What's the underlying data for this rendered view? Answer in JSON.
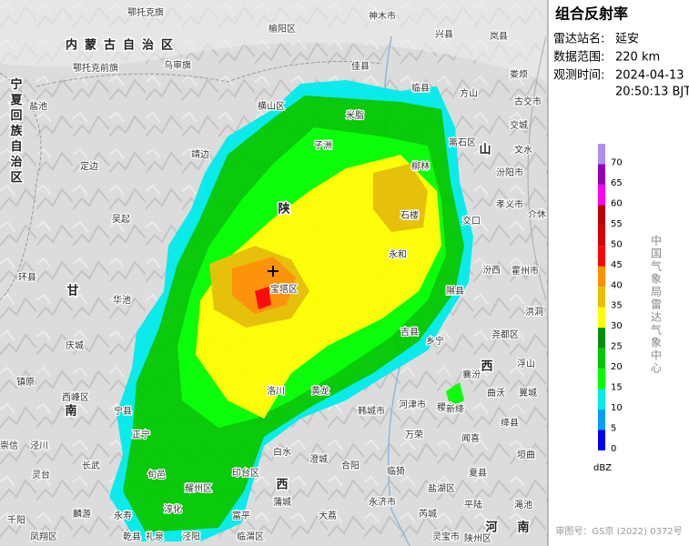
{
  "panel": {
    "title": "组合反射率",
    "fields": [
      {
        "label": "雷达站名:",
        "value": "延安"
      },
      {
        "label": "数据范围:",
        "value": "220 km"
      },
      {
        "label": "观测时间:",
        "value": "2024-04-13",
        "value2": "20:50:13 BJT"
      }
    ],
    "credit": "中国气象局雷达气象中心",
    "approval": "审图号：GS京 (2022) 0372号"
  },
  "legend": {
    "unit": "dBZ",
    "levels": [
      70,
      65,
      60,
      55,
      50,
      45,
      40,
      35,
      30,
      25,
      20,
      15,
      10,
      5,
      0
    ],
    "colors": [
      "#ad90f0",
      "#9600b4",
      "#ff00f0",
      "#c00000",
      "#d60000",
      "#ff0000",
      "#ff9000",
      "#e7c000",
      "#ffff00",
      "#009000",
      "#00c800",
      "#01ff00",
      "#00ecec",
      "#01a0f6",
      "#0000f6"
    ]
  },
  "map": {
    "regions": [
      "内蒙古自治区",
      "宁夏回族自治区",
      "陕",
      "山",
      "甘",
      "西",
      "南",
      "西",
      "河",
      "南"
    ],
    "places": [
      "鄂托克旗",
      "神木市",
      "兴县",
      "岚县",
      "榆阳区",
      "鄂托克前旗",
      "乌审旗",
      "佳县",
      "临县",
      "方山",
      "娄烦",
      "古交市",
      "盐池",
      "横山区",
      "米脂",
      "交城",
      "离石区",
      "文水",
      "靖边",
      "子洲",
      "定边",
      "柳林",
      "汾阳市",
      "孝义市",
      "吴起",
      "石楼",
      "交口",
      "介休",
      "环县",
      "华池",
      "宝塔区",
      "汾西",
      "霍州市",
      "隰县",
      "洪洞",
      "庆城",
      "永和",
      "吉县",
      "乡宁",
      "尧都区",
      "襄汾",
      "浮山",
      "镇原",
      "西峰区",
      "宁县",
      "黄龙",
      "洛川",
      "韩城市",
      "河津市",
      "稷山",
      "新绛",
      "曲沃",
      "翼城",
      "绛县",
      "崇信",
      "泾川",
      "正宁",
      "万荣",
      "闻喜",
      "白水",
      "澄城",
      "合阳",
      "垣曲",
      "灵台",
      "长武",
      "旬邑",
      "印台区",
      "临猗",
      "夏县",
      "淳化",
      "耀州区",
      "蒲城",
      "永济市",
      "盐湖区",
      "平陆",
      "渑池",
      "千阳",
      "麟游",
      "永寿",
      "富平",
      "大荔",
      "芮城",
      "陕州区",
      "凤翔区",
      "乾县",
      "礼泉",
      "泾阳",
      "临渭区",
      "灵宝市"
    ]
  }
}
